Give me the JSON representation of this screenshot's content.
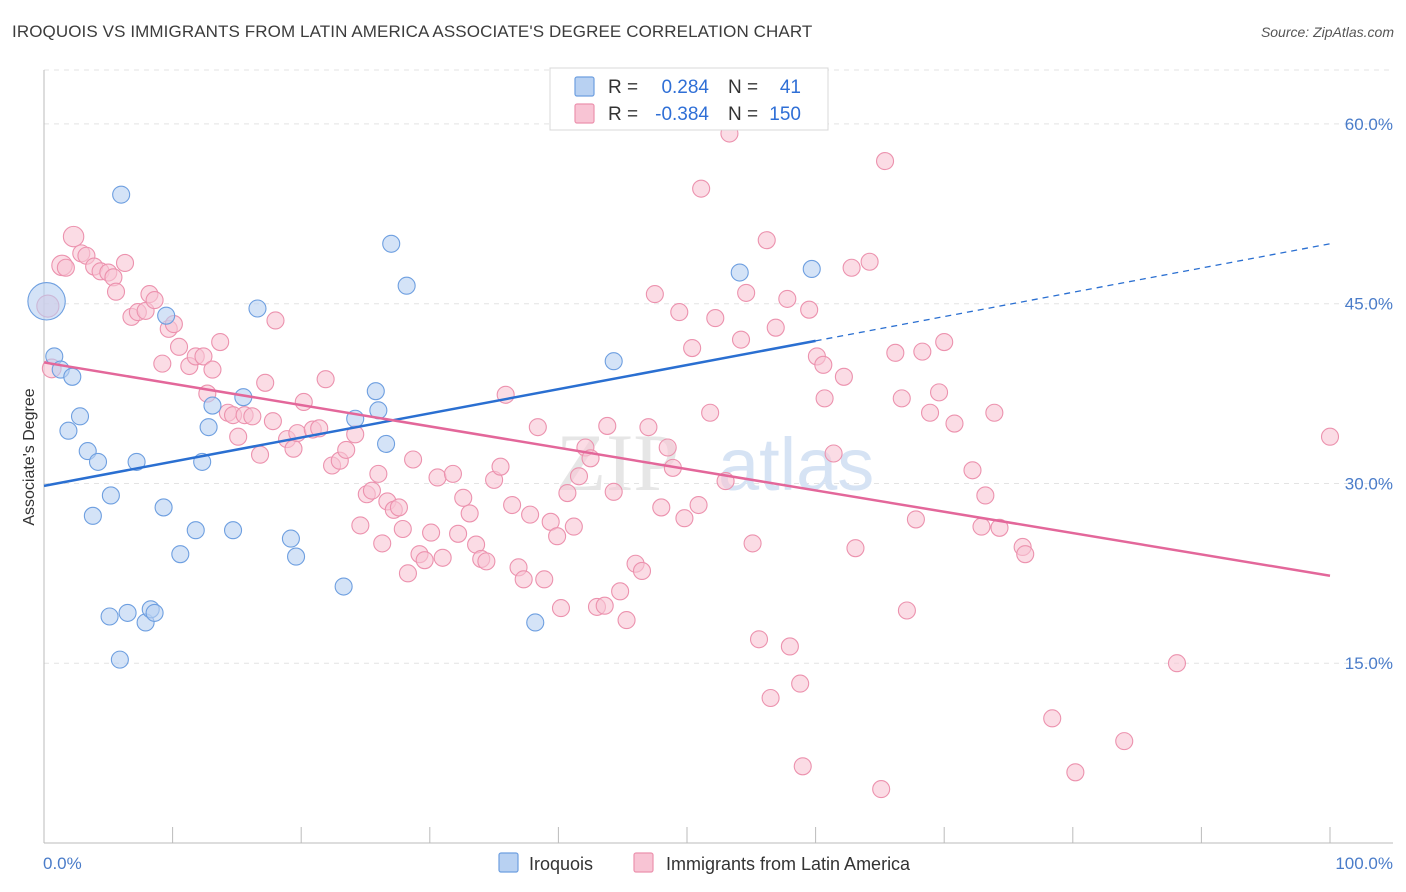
{
  "title": "IROQUOIS VS IMMIGRANTS FROM LATIN AMERICA ASSOCIATE'S DEGREE CORRELATION CHART",
  "source": "Source: ZipAtlas.com",
  "watermark": {
    "part1": "ZIP",
    "part2": "atlas"
  },
  "colors": {
    "iroquois_fill": "#b8d1f2",
    "iroquois_stroke": "#6e9fe0",
    "iroquois_line": "#2a6fd1",
    "latam_fill": "#f8c4d4",
    "latam_stroke": "#ec92ae",
    "latam_line": "#e3679a",
    "grid": "#e3e3e3",
    "tick_label": "#4a7cc9"
  },
  "stats": {
    "r_label": "R =",
    "n_label": "N =",
    "iroquois": {
      "r": "0.284",
      "n": "41"
    },
    "latam": {
      "r": "-0.384",
      "n": "150"
    }
  },
  "chart_data": {
    "type": "scatter",
    "title": "IROQUOIS VS IMMIGRANTS FROM LATIN AMERICA ASSOCIATE'S DEGREE CORRELATION CHART",
    "xlabel": "",
    "ylabel": "Associate's Degree",
    "xlim": [
      0,
      100
    ],
    "ylim": [
      0,
      64.5
    ],
    "x_tick_labels": [
      "0.0%",
      "100.0%"
    ],
    "y_ticks": [
      15,
      30,
      45,
      60
    ],
    "y_tick_labels": [
      "15.0%",
      "30.0%",
      "45.0%",
      "60.0%"
    ],
    "grid": true,
    "legend_position": "bottom-center",
    "series": [
      {
        "name": "Iroquois",
        "trend": {
          "x0": 0,
          "y0": 29.8,
          "x1": 60,
          "y1": 41.9,
          "dashed_to_x": 100,
          "dashed_to_y": 50.0
        },
        "points": [
          [
            0.2,
            45.2,
            2.2
          ],
          [
            0.8,
            40.6,
            1
          ],
          [
            1.3,
            39.5,
            1
          ],
          [
            2.2,
            38.9,
            1
          ],
          [
            1.9,
            34.4,
            1
          ],
          [
            2.8,
            35.6,
            1
          ],
          [
            3.4,
            32.7,
            1
          ],
          [
            4.2,
            31.8,
            1
          ],
          [
            5.2,
            29.0,
            1
          ],
          [
            3.8,
            27.3,
            1
          ],
          [
            6.0,
            54.1,
            1
          ],
          [
            7.2,
            31.8,
            1
          ],
          [
            9.5,
            44.0,
            1
          ],
          [
            9.3,
            28.0,
            1
          ],
          [
            10.6,
            24.1,
            1
          ],
          [
            11.8,
            26.1,
            1
          ],
          [
            12.3,
            31.8,
            1
          ],
          [
            12.8,
            34.7,
            1
          ],
          [
            13.1,
            36.5,
            1
          ],
          [
            14.7,
            26.1,
            1
          ],
          [
            15.5,
            37.2,
            1
          ],
          [
            16.6,
            44.6,
            1
          ],
          [
            19.2,
            25.4,
            1
          ],
          [
            19.6,
            23.9,
            1
          ],
          [
            5.1,
            18.9,
            1
          ],
          [
            6.5,
            19.2,
            1
          ],
          [
            7.9,
            18.4,
            1
          ],
          [
            8.3,
            19.5,
            1
          ],
          [
            8.6,
            19.2,
            1
          ],
          [
            5.9,
            15.3,
            1
          ],
          [
            23.3,
            21.4,
            1
          ],
          [
            24.2,
            35.4,
            1
          ],
          [
            25.8,
            37.7,
            1
          ],
          [
            26.0,
            36.1,
            1
          ],
          [
            26.6,
            33.3,
            1
          ],
          [
            27.0,
            50.0,
            1
          ],
          [
            28.2,
            46.5,
            1
          ],
          [
            38.2,
            18.4,
            1
          ],
          [
            44.3,
            40.2,
            1
          ],
          [
            54.1,
            47.6,
            1
          ],
          [
            59.7,
            47.9,
            1
          ]
        ]
      },
      {
        "name": "Immigrants from Latin America",
        "trend": {
          "x0": 0,
          "y0": 40.1,
          "x1": 100,
          "y1": 22.3
        },
        "points": [
          [
            0.3,
            44.8,
            1.3
          ],
          [
            0.6,
            39.6,
            1.1
          ],
          [
            1.4,
            48.2,
            1.2
          ],
          [
            1.7,
            48.0,
            1
          ],
          [
            2.3,
            50.6,
            1.2
          ],
          [
            2.9,
            49.2,
            1
          ],
          [
            3.3,
            49.0,
            1
          ],
          [
            3.9,
            48.1,
            1
          ],
          [
            4.4,
            47.7,
            1
          ],
          [
            5.0,
            47.6,
            1
          ],
          [
            5.4,
            47.2,
            1
          ],
          [
            5.6,
            46.0,
            1
          ],
          [
            6.3,
            48.4,
            1
          ],
          [
            6.8,
            43.9,
            1
          ],
          [
            7.3,
            44.3,
            1
          ],
          [
            7.9,
            44.4,
            1
          ],
          [
            8.2,
            45.8,
            1
          ],
          [
            8.6,
            45.3,
            1
          ],
          [
            9.2,
            40.0,
            1
          ],
          [
            9.7,
            42.9,
            1
          ],
          [
            10.1,
            43.3,
            1
          ],
          [
            10.5,
            41.4,
            1
          ],
          [
            11.3,
            39.8,
            1
          ],
          [
            11.8,
            40.6,
            1
          ],
          [
            12.4,
            40.6,
            1
          ],
          [
            12.7,
            37.5,
            1
          ],
          [
            13.1,
            39.5,
            1
          ],
          [
            13.7,
            41.8,
            1
          ],
          [
            14.3,
            35.9,
            1
          ],
          [
            14.7,
            35.7,
            1
          ],
          [
            15.1,
            33.9,
            1
          ],
          [
            15.6,
            35.7,
            1
          ],
          [
            16.2,
            35.6,
            1
          ],
          [
            16.8,
            32.4,
            1
          ],
          [
            17.2,
            38.4,
            1
          ],
          [
            18.0,
            43.6,
            1
          ],
          [
            17.8,
            35.2,
            1
          ],
          [
            18.9,
            33.7,
            1
          ],
          [
            19.4,
            32.9,
            1
          ],
          [
            19.7,
            34.2,
            1
          ],
          [
            20.2,
            36.8,
            1
          ],
          [
            20.9,
            34.5,
            1
          ],
          [
            21.4,
            34.6,
            1
          ],
          [
            21.9,
            38.7,
            1
          ],
          [
            22.4,
            31.5,
            1
          ],
          [
            23.0,
            31.9,
            1
          ],
          [
            23.5,
            32.8,
            1
          ],
          [
            24.2,
            34.1,
            1
          ],
          [
            24.6,
            26.5,
            1
          ],
          [
            25.1,
            29.1,
            1
          ],
          [
            25.5,
            29.4,
            1
          ],
          [
            26.0,
            30.8,
            1
          ],
          [
            26.3,
            25.0,
            1
          ],
          [
            26.7,
            28.5,
            1
          ],
          [
            27.2,
            27.8,
            1
          ],
          [
            27.6,
            28.0,
            1
          ],
          [
            27.9,
            26.2,
            1
          ],
          [
            28.3,
            22.5,
            1
          ],
          [
            28.7,
            32.0,
            1
          ],
          [
            29.2,
            24.1,
            1
          ],
          [
            29.6,
            23.6,
            1
          ],
          [
            30.1,
            25.9,
            1
          ],
          [
            30.6,
            30.5,
            1
          ],
          [
            31.0,
            23.8,
            1
          ],
          [
            31.8,
            30.8,
            1
          ],
          [
            32.2,
            25.8,
            1
          ],
          [
            32.6,
            28.8,
            1
          ],
          [
            33.1,
            27.5,
            1
          ],
          [
            33.6,
            24.9,
            1
          ],
          [
            34.0,
            23.7,
            1
          ],
          [
            34.4,
            23.5,
            1
          ],
          [
            35.0,
            30.3,
            1
          ],
          [
            35.5,
            31.4,
            1
          ],
          [
            35.9,
            37.4,
            1
          ],
          [
            36.4,
            28.2,
            1
          ],
          [
            36.9,
            23.0,
            1
          ],
          [
            37.3,
            22.0,
            1
          ],
          [
            37.8,
            27.4,
            1
          ],
          [
            38.4,
            34.7,
            1
          ],
          [
            38.9,
            22.0,
            1
          ],
          [
            39.4,
            26.8,
            1
          ],
          [
            39.9,
            25.6,
            1
          ],
          [
            40.2,
            19.6,
            1
          ],
          [
            40.7,
            29.2,
            1
          ],
          [
            41.2,
            26.4,
            1
          ],
          [
            41.6,
            30.6,
            1
          ],
          [
            42.1,
            33.0,
            1
          ],
          [
            42.5,
            32.1,
            1
          ],
          [
            43.0,
            19.7,
            1
          ],
          [
            43.6,
            19.8,
            1
          ],
          [
            43.8,
            34.8,
            1
          ],
          [
            44.3,
            29.3,
            1
          ],
          [
            44.8,
            21.0,
            1
          ],
          [
            45.3,
            18.6,
            1
          ],
          [
            46.0,
            23.3,
            1
          ],
          [
            46.5,
            22.7,
            1
          ],
          [
            47.0,
            34.7,
            1
          ],
          [
            47.5,
            45.8,
            1
          ],
          [
            48.0,
            28.0,
            1
          ],
          [
            48.5,
            33.0,
            1
          ],
          [
            48.9,
            31.3,
            1
          ],
          [
            49.4,
            44.3,
            1
          ],
          [
            49.8,
            27.1,
            1
          ],
          [
            50.4,
            41.3,
            1
          ],
          [
            50.9,
            28.2,
            1
          ],
          [
            51.1,
            54.6,
            1
          ],
          [
            51.8,
            35.9,
            1
          ],
          [
            52.2,
            43.8,
            1
          ],
          [
            53.0,
            30.2,
            1
          ],
          [
            53.3,
            59.2,
            1
          ],
          [
            54.2,
            42.0,
            1
          ],
          [
            54.6,
            45.9,
            1
          ],
          [
            55.1,
            25.0,
            1
          ],
          [
            55.6,
            17.0,
            1
          ],
          [
            56.2,
            50.3,
            1
          ],
          [
            56.5,
            12.1,
            1
          ],
          [
            56.9,
            43.0,
            1
          ],
          [
            57.8,
            45.4,
            1
          ],
          [
            58.0,
            16.4,
            1
          ],
          [
            58.8,
            13.3,
            1
          ],
          [
            59.0,
            6.4,
            1
          ],
          [
            59.5,
            44.5,
            1
          ],
          [
            60.1,
            40.6,
            1
          ],
          [
            60.7,
            37.1,
            1
          ],
          [
            60.6,
            39.9,
            1
          ],
          [
            61.4,
            32.5,
            1
          ],
          [
            62.2,
            38.9,
            1
          ],
          [
            62.8,
            48.0,
            1
          ],
          [
            63.1,
            24.6,
            1
          ],
          [
            64.2,
            48.5,
            1
          ],
          [
            65.1,
            4.5,
            1
          ],
          [
            65.4,
            56.9,
            1
          ],
          [
            66.2,
            40.9,
            1
          ],
          [
            66.7,
            37.1,
            1
          ],
          [
            67.1,
            19.4,
            1
          ],
          [
            67.8,
            27.0,
            1
          ],
          [
            68.3,
            41.0,
            1
          ],
          [
            68.9,
            35.9,
            1
          ],
          [
            69.6,
            37.6,
            1
          ],
          [
            70.0,
            41.8,
            1
          ],
          [
            70.8,
            35.0,
            1
          ],
          [
            72.2,
            31.1,
            1
          ],
          [
            73.2,
            29.0,
            1
          ],
          [
            73.9,
            35.9,
            1
          ],
          [
            72.9,
            26.4,
            1
          ],
          [
            74.3,
            26.3,
            1
          ],
          [
            76.1,
            24.7,
            1
          ],
          [
            76.3,
            24.1,
            1
          ],
          [
            78.4,
            10.4,
            1
          ],
          [
            80.2,
            5.9,
            1
          ],
          [
            84.0,
            8.5,
            1
          ],
          [
            88.1,
            15.0,
            1
          ],
          [
            100.0,
            33.9,
            1
          ]
        ]
      }
    ]
  },
  "legend": {
    "items": [
      {
        "label": "Iroquois"
      },
      {
        "label": "Immigrants from Latin America"
      }
    ]
  }
}
